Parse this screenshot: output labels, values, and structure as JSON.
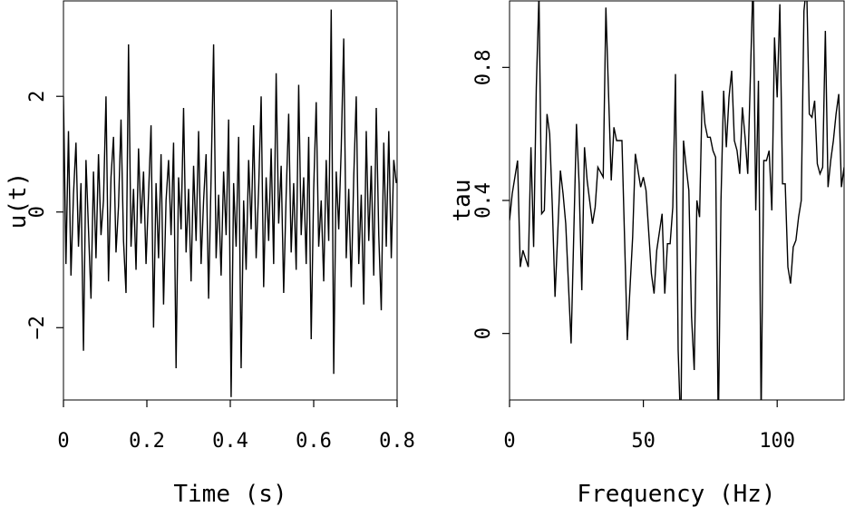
{
  "chart_data": [
    {
      "type": "line",
      "xlabel": "Time (s)",
      "ylabel": "u(t)",
      "xlim": [
        0,
        0.8
      ],
      "ylim": [
        -3.25,
        3.65
      ],
      "xticks": [
        0,
        0.2,
        0.4,
        0.6,
        0.8
      ],
      "xtick_labels": [
        "0",
        "0.2",
        "0.4",
        "0.6",
        "0.8"
      ],
      "yticks": [
        -2,
        0,
        2
      ],
      "ytick_labels": [
        "−2",
        "0",
        "2"
      ],
      "grid": false,
      "series": [
        {
          "x": [
            0.0,
            0.006,
            0.012,
            0.018,
            0.024,
            0.03,
            0.036,
            0.042,
            0.048,
            0.054,
            0.06,
            0.066,
            0.072,
            0.078,
            0.084,
            0.09,
            0.096,
            0.102,
            0.108,
            0.114,
            0.12,
            0.126,
            0.132,
            0.138,
            0.144,
            0.15,
            0.156,
            0.162,
            0.168,
            0.174,
            0.18,
            0.186,
            0.192,
            0.198,
            0.204,
            0.21,
            0.216,
            0.222,
            0.228,
            0.234,
            0.24,
            0.246,
            0.252,
            0.258,
            0.264,
            0.27,
            0.276,
            0.282,
            0.288,
            0.294,
            0.3,
            0.306,
            0.312,
            0.318,
            0.324,
            0.33,
            0.336,
            0.342,
            0.348,
            0.354,
            0.36,
            0.366,
            0.372,
            0.378,
            0.384,
            0.39,
            0.396,
            0.402,
            0.408,
            0.414,
            0.42,
            0.426,
            0.432,
            0.438,
            0.444,
            0.45,
            0.456,
            0.462,
            0.468,
            0.474,
            0.48,
            0.486,
            0.492,
            0.498,
            0.504,
            0.51,
            0.516,
            0.522,
            0.528,
            0.534,
            0.54,
            0.546,
            0.552,
            0.558,
            0.564,
            0.57,
            0.576,
            0.582,
            0.588,
            0.594,
            0.6,
            0.606,
            0.612,
            0.618,
            0.624,
            0.63,
            0.636,
            0.642,
            0.648,
            0.654,
            0.66,
            0.666,
            0.672,
            0.678,
            0.684,
            0.69,
            0.696,
            0.702,
            0.708,
            0.714,
            0.72,
            0.726,
            0.732,
            0.738,
            0.744,
            0.75,
            0.756,
            0.762,
            0.768,
            0.774,
            0.78,
            0.786,
            0.792,
            0.798
          ],
          "values": [
            2.0,
            -0.9,
            1.4,
            -1.1,
            0.3,
            1.2,
            -0.6,
            0.5,
            -2.4,
            0.9,
            -0.3,
            -1.5,
            0.7,
            -0.8,
            1.0,
            -0.4,
            0.2,
            2.0,
            -1.2,
            0.6,
            1.3,
            -0.7,
            0.1,
            1.6,
            -0.5,
            -1.4,
            2.9,
            -0.6,
            0.4,
            -1.0,
            1.1,
            -0.2,
            0.7,
            -0.9,
            0.3,
            1.5,
            -2.0,
            0.5,
            -0.8,
            1.0,
            -1.6,
            0.2,
            0.9,
            -0.4,
            1.2,
            -2.7,
            0.6,
            -0.3,
            1.8,
            -0.7,
            0.4,
            -1.2,
            0.8,
            -0.5,
            1.4,
            -0.9,
            0.2,
            1.0,
            -1.5,
            0.6,
            2.9,
            -0.8,
            0.3,
            -1.1,
            0.7,
            -0.4,
            1.6,
            -3.2,
            0.5,
            -0.6,
            1.3,
            -2.7,
            0.2,
            -1.0,
            0.9,
            -0.3,
            1.5,
            -0.8,
            0.4,
            2.0,
            -1.3,
            0.6,
            -0.5,
            1.1,
            -0.9,
            2.4,
            -0.2,
            0.8,
            -1.4,
            0.3,
            1.7,
            -0.7,
            0.5,
            -1.0,
            2.2,
            -0.4,
            0.6,
            -0.9,
            1.3,
            -2.2,
            0.4,
            1.9,
            -0.6,
            0.2,
            -1.2,
            0.9,
            -0.5,
            3.5,
            -2.8,
            0.7,
            -0.3,
            1.1,
            3.0,
            -0.8,
            0.4,
            -1.3,
            0.6,
            2.0,
            -0.9,
            0.3,
            -1.6,
            1.4,
            -0.5,
            0.8,
            -1.1,
            1.8,
            -0.4,
            -1.7,
            1.2,
            -0.6,
            1.4,
            -0.8,
            0.9,
            0.5
          ]
        }
      ]
    },
    {
      "type": "line",
      "xlabel": "Frequency (Hz)",
      "ylabel": "tau",
      "xlim": [
        0,
        125
      ],
      "ylim": [
        -0.2,
        1.0
      ],
      "xticks": [
        0,
        50,
        100
      ],
      "xtick_labels": [
        "0",
        "50",
        "100"
      ],
      "yticks": [
        0,
        0.4,
        0.8
      ],
      "ytick_labels": [
        "0",
        "0.4",
        "0.8"
      ],
      "grid": false,
      "series": [
        {
          "x": [
            0,
            1,
            3,
            4,
            5,
            7,
            8,
            9,
            10,
            11,
            12,
            13,
            14,
            15,
            16,
            17,
            19,
            20,
            21,
            23,
            25,
            26,
            27,
            28,
            29,
            31,
            32,
            33,
            35,
            36,
            38,
            39,
            40,
            41,
            42,
            44,
            46,
            47,
            49,
            50,
            51,
            53,
            54,
            55,
            57,
            58,
            59,
            60,
            61,
            62,
            63,
            64,
            65,
            66,
            67,
            68,
            69,
            70,
            71,
            72,
            73,
            74,
            75,
            76,
            77,
            78,
            79,
            80,
            81,
            82,
            83,
            84,
            85,
            86,
            87,
            88,
            89,
            91,
            92,
            93,
            94,
            95,
            96,
            97,
            98,
            99,
            100,
            101,
            102,
            103,
            104,
            105,
            106,
            107,
            108,
            109,
            110,
            111,
            112,
            113,
            114,
            115,
            116,
            117,
            118,
            119,
            120,
            121,
            122,
            123,
            124,
            125
          ],
          "values": [
            0.34,
            0.42,
            0.52,
            0.2,
            0.25,
            0.2,
            0.56,
            0.26,
            0.74,
            1.02,
            0.36,
            0.37,
            0.66,
            0.6,
            0.38,
            0.11,
            0.49,
            0.42,
            0.33,
            -0.03,
            0.63,
            0.45,
            0.13,
            0.56,
            0.46,
            0.33,
            0.38,
            0.5,
            0.47,
            0.98,
            0.46,
            0.62,
            0.58,
            0.58,
            0.58,
            -0.02,
            0.29,
            0.54,
            0.44,
            0.47,
            0.43,
            0.18,
            0.12,
            0.25,
            0.36,
            0.12,
            0.27,
            0.27,
            0.38,
            0.78,
            -0.05,
            -0.3,
            0.58,
            0.5,
            0.43,
            0.05,
            -0.11,
            0.4,
            0.35,
            0.73,
            0.63,
            0.59,
            0.59,
            0.55,
            0.53,
            -0.3,
            0.4,
            0.73,
            0.56,
            0.71,
            0.79,
            0.58,
            0.55,
            0.48,
            0.68,
            0.59,
            0.48,
            1.07,
            0.37,
            0.76,
            -0.25,
            0.52,
            0.52,
            0.55,
            0.37,
            0.89,
            0.71,
            0.99,
            0.45,
            0.45,
            0.2,
            0.15,
            0.26,
            0.28,
            0.35,
            0.4,
            0.97,
            1.05,
            0.66,
            0.65,
            0.7,
            0.51,
            0.48,
            0.5,
            0.91,
            0.44,
            0.52,
            0.58,
            0.66,
            0.72,
            0.44,
            0.5
          ]
        }
      ]
    }
  ]
}
